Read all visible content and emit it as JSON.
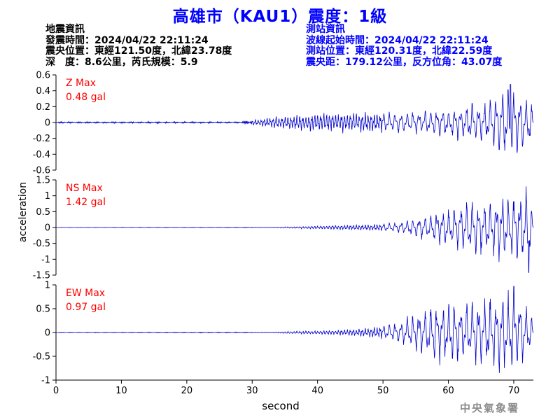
{
  "header": {
    "title": "高雄市（KAU1）震度：1級"
  },
  "quake_info": {
    "heading": "地震資訊",
    "origin_time": "發震時間：2024/04/22 22:11:24",
    "epicenter": "震央位置：東經121.50度，北緯23.78度",
    "depth_magnitude": "深　度：8.6公里，芮氏規模：5.9"
  },
  "station_info": {
    "heading": "測站資訊",
    "wave_start": "波線起始時間：2024/04/22 22:11:24",
    "location": "測站位置：東經120.31度，北緯22.59度",
    "distance_azimuth": "震央距：179.12公里，反方位角：43.07度"
  },
  "watermark": "中央氣象署",
  "colors": {
    "title": "#0000ff",
    "trace": "#0000cc",
    "max_label": "#ff0000",
    "axis": "#000000",
    "watermark": "#8c8c8c"
  },
  "chart_data": {
    "type": "line",
    "xlabel": "second",
    "ylabel": "acceleration",
    "xlim": [
      0,
      73
    ],
    "xticks": [
      0,
      10,
      20,
      30,
      40,
      50,
      60,
      70
    ],
    "grid": false,
    "panels": [
      {
        "component": "Z",
        "max_label": "Z Max",
        "max_value": "0.48 gal",
        "ylim": [
          -0.6,
          0.6
        ],
        "yticks": [
          0.6,
          0.4,
          0.2,
          0,
          -0.2,
          -0.4,
          -0.6
        ],
        "envelope": [
          [
            0,
            0.01
          ],
          [
            28,
            0.01
          ],
          [
            30,
            0.03
          ],
          [
            35,
            0.09
          ],
          [
            40,
            0.13
          ],
          [
            48,
            0.13
          ],
          [
            52,
            0.12
          ],
          [
            58,
            0.16
          ],
          [
            62,
            0.22
          ],
          [
            66,
            0.26
          ],
          [
            68.5,
            0.42
          ],
          [
            70,
            0.4
          ],
          [
            72,
            0.3
          ],
          [
            73,
            0.25
          ]
        ],
        "peak": {
          "x": 69.5,
          "y": 0.48
        }
      },
      {
        "component": "NS",
        "max_label": "NS Max",
        "max_value": "1.42 gal",
        "ylim": [
          -1.5,
          1.5
        ],
        "yticks": [
          1.5,
          1,
          0.5,
          0,
          -0.5,
          -1,
          -1.5
        ],
        "envelope": [
          [
            0,
            0.005
          ],
          [
            33,
            0.01
          ],
          [
            38,
            0.04
          ],
          [
            43,
            0.07
          ],
          [
            48,
            0.1
          ],
          [
            52,
            0.15
          ],
          [
            55,
            0.3
          ],
          [
            58,
            0.5
          ],
          [
            61,
            0.62
          ],
          [
            64,
            0.85
          ],
          [
            67,
            0.95
          ],
          [
            70,
            1.1
          ],
          [
            72,
            1.2
          ],
          [
            73,
            0.6
          ]
        ],
        "peak": {
          "x": 72.3,
          "y": -1.42
        }
      },
      {
        "component": "EW",
        "max_label": "EW Max",
        "max_value": "0.97 gal",
        "ylim": [
          -1,
          1
        ],
        "yticks": [
          1,
          0.5,
          0,
          -0.5,
          -1
        ],
        "envelope": [
          [
            0,
            0.006
          ],
          [
            33,
            0.01
          ],
          [
            36,
            0.03
          ],
          [
            40,
            0.04
          ],
          [
            44,
            0.06
          ],
          [
            48,
            0.1
          ],
          [
            52,
            0.2
          ],
          [
            55,
            0.4
          ],
          [
            58,
            0.62
          ],
          [
            62,
            0.66
          ],
          [
            66,
            0.72
          ],
          [
            69,
            0.9
          ],
          [
            71,
            0.82
          ],
          [
            73,
            0.25
          ]
        ],
        "peak": {
          "x": 70.0,
          "y": 0.97
        }
      }
    ]
  }
}
